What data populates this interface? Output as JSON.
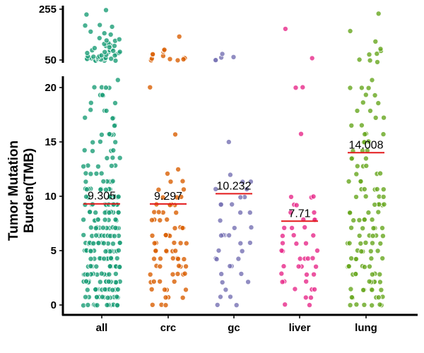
{
  "chart_data": {
    "type": "scatter",
    "subtype": "jittered strip plot with broken y-axis",
    "ylabel_lines": [
      "Tumor Mutation",
      "Burden(TMB)"
    ],
    "xlabel": "",
    "categories": [
      "all",
      "crc",
      "gc",
      "liver",
      "lung"
    ],
    "lower_panel": {
      "ylim": [
        -0.8,
        21.5
      ],
      "ticks": [
        "0",
        "5",
        "10",
        "15",
        "20"
      ],
      "tick_values": [
        0,
        5,
        10,
        15,
        20
      ]
    },
    "upper_panel": {
      "ylim": [
        45,
        265
      ],
      "ticks": [
        "50",
        "255"
      ],
      "tick_values": [
        50,
        255
      ]
    },
    "medians": [
      {
        "category": "all",
        "value": 9.305,
        "label": "9.305"
      },
      {
        "category": "crc",
        "value": 9.297,
        "label": "9.297"
      },
      {
        "category": "gc",
        "value": 10.232,
        "label": "10.232"
      },
      {
        "category": "liver",
        "value": 7.71,
        "label": "7.71"
      },
      {
        "category": "lung",
        "value": 14.008,
        "label": "14.008"
      }
    ],
    "median_line_color": "#e31a1c",
    "series": [
      {
        "name": "all",
        "color": "#1b9e77",
        "points_value_count": [
          [
            0,
            14
          ],
          [
            0.71,
            14
          ],
          [
            1.42,
            14
          ],
          [
            2.13,
            14
          ],
          [
            2.84,
            14
          ],
          [
            3.55,
            14
          ],
          [
            4.26,
            13
          ],
          [
            4.97,
            14
          ],
          [
            5.68,
            14
          ],
          [
            6.39,
            13
          ],
          [
            7.1,
            12
          ],
          [
            7.81,
            10
          ],
          [
            8.52,
            11
          ],
          [
            9.23,
            12
          ],
          [
            9.94,
            9
          ],
          [
            10.65,
            10
          ],
          [
            11.36,
            6
          ],
          [
            12.07,
            4
          ],
          [
            12.78,
            5
          ],
          [
            13.5,
            3
          ],
          [
            14.2,
            4
          ],
          [
            15,
            3
          ],
          [
            15.7,
            5
          ],
          [
            16.5,
            2
          ],
          [
            17.2,
            3
          ],
          [
            17.9,
            3
          ],
          [
            18.6,
            2
          ],
          [
            19.3,
            3
          ],
          [
            20,
            4
          ],
          [
            20.7,
            1
          ],
          [
            50,
            10
          ],
          [
            60,
            8
          ],
          [
            75,
            8
          ],
          [
            90,
            6
          ],
          [
            110,
            6
          ],
          [
            130,
            4
          ],
          [
            160,
            3
          ],
          [
            190,
            3
          ],
          [
            230,
            1
          ],
          [
            250,
            1
          ]
        ]
      },
      {
        "name": "crc",
        "color": "#d95f02",
        "points_value_count": [
          [
            0,
            3
          ],
          [
            0.71,
            3
          ],
          [
            1.42,
            4
          ],
          [
            2.13,
            4
          ],
          [
            2.84,
            5
          ],
          [
            3.55,
            5
          ],
          [
            4.26,
            6
          ],
          [
            4.97,
            6
          ],
          [
            5.68,
            5
          ],
          [
            6.39,
            5
          ],
          [
            7.1,
            4
          ],
          [
            7.81,
            4
          ],
          [
            8.52,
            4
          ],
          [
            9.23,
            5
          ],
          [
            9.94,
            3
          ],
          [
            10.65,
            2
          ],
          [
            11.36,
            2
          ],
          [
            12.07,
            1
          ],
          [
            12.5,
            1
          ],
          [
            15.7,
            1
          ],
          [
            20,
            1
          ],
          [
            50,
            3
          ],
          [
            60,
            4
          ],
          [
            70,
            3
          ],
          [
            80,
            2
          ],
          [
            90,
            1
          ],
          [
            150,
            1
          ]
        ]
      },
      {
        "name": "gc",
        "color": "#7570b3",
        "points_value_count": [
          [
            0,
            2
          ],
          [
            0.71,
            2
          ],
          [
            1.42,
            1
          ],
          [
            2.13,
            2
          ],
          [
            2.84,
            2
          ],
          [
            3.55,
            2
          ],
          [
            4.26,
            3
          ],
          [
            4.97,
            2
          ],
          [
            5.68,
            2
          ],
          [
            6.39,
            4
          ],
          [
            7.1,
            2
          ],
          [
            7.81,
            1
          ],
          [
            8.52,
            2
          ],
          [
            9.23,
            3
          ],
          [
            9.94,
            2
          ],
          [
            10.65,
            2
          ],
          [
            11.36,
            2
          ],
          [
            12,
            1
          ],
          [
            15,
            1
          ],
          [
            50,
            2
          ],
          [
            60,
            2
          ],
          [
            75,
            1
          ]
        ]
      },
      {
        "name": "liver",
        "color": "#e7298a",
        "points_value_count": [
          [
            0,
            2
          ],
          [
            0.71,
            2
          ],
          [
            1.42,
            3
          ],
          [
            2.13,
            3
          ],
          [
            2.84,
            3
          ],
          [
            3.55,
            4
          ],
          [
            4.26,
            4
          ],
          [
            4.97,
            3
          ],
          [
            5.68,
            3
          ],
          [
            6.39,
            3
          ],
          [
            7.1,
            3
          ],
          [
            7.81,
            3
          ],
          [
            8.52,
            2
          ],
          [
            9.23,
            2
          ],
          [
            9.94,
            3
          ],
          [
            15.7,
            1
          ],
          [
            20,
            2
          ],
          [
            55,
            1
          ],
          [
            170,
            1
          ]
        ]
      },
      {
        "name": "lung",
        "color": "#66a61e",
        "points_value_count": [
          [
            0,
            6
          ],
          [
            0.71,
            5
          ],
          [
            1.42,
            6
          ],
          [
            2.13,
            6
          ],
          [
            2.84,
            6
          ],
          [
            3.55,
            6
          ],
          [
            4.26,
            5
          ],
          [
            4.97,
            5
          ],
          [
            5.68,
            6
          ],
          [
            6.39,
            5
          ],
          [
            7.1,
            5
          ],
          [
            7.81,
            5
          ],
          [
            8.52,
            5
          ],
          [
            9.23,
            5
          ],
          [
            9.94,
            4
          ],
          [
            10.65,
            5
          ],
          [
            11.36,
            3
          ],
          [
            12.07,
            3
          ],
          [
            12.78,
            3
          ],
          [
            13.5,
            3
          ],
          [
            14.2,
            3
          ],
          [
            15,
            3
          ],
          [
            15.7,
            3
          ],
          [
            16.5,
            2
          ],
          [
            17.2,
            2
          ],
          [
            17.9,
            2
          ],
          [
            18.6,
            2
          ],
          [
            19.3,
            2
          ],
          [
            20,
            3
          ],
          [
            20.7,
            1
          ],
          [
            50,
            3
          ],
          [
            70,
            2
          ],
          [
            90,
            2
          ],
          [
            130,
            1
          ],
          [
            170,
            1
          ],
          [
            240,
            1
          ]
        ]
      }
    ]
  }
}
